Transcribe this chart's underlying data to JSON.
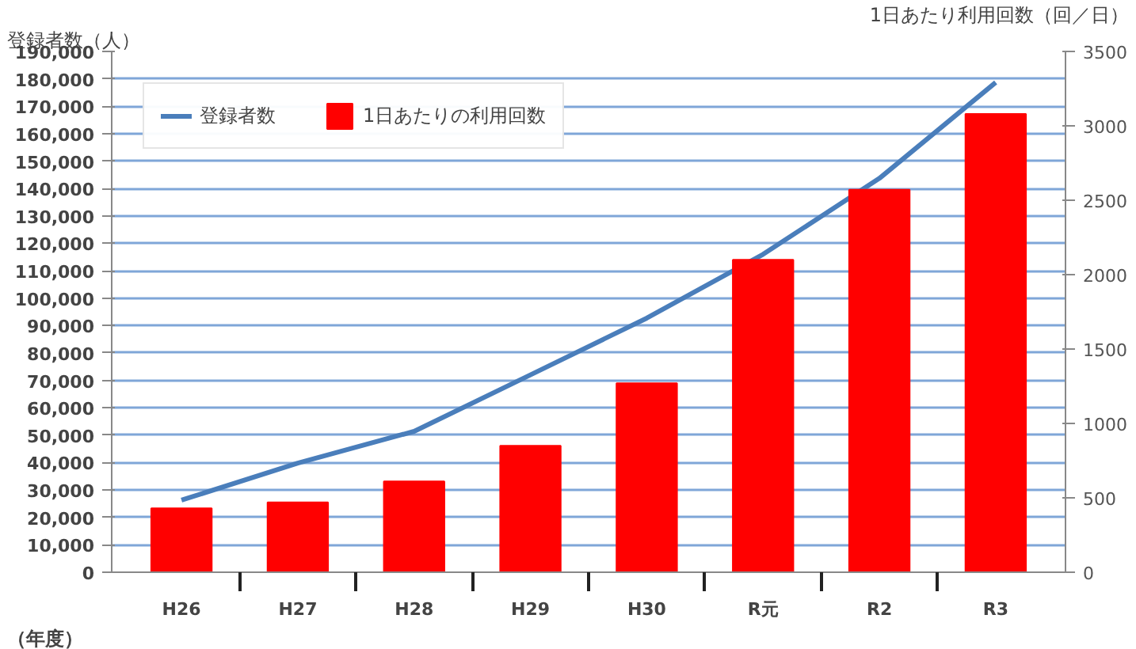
{
  "chart_data": {
    "type": "bar",
    "categories": [
      "H26",
      "H27",
      "H28",
      "H29",
      "H30",
      "R元",
      "R2",
      "R3"
    ],
    "series": [
      {
        "name": "登録者数",
        "type": "line",
        "color": "#4a7ebb",
        "values": [
          26300,
          39800,
          51400,
          72000,
          92700,
          116000,
          143700,
          178700
        ]
      },
      {
        "name": "1日あたりの利用回数",
        "axis": "y2",
        "color": "#ff0000",
        "values": [
          430,
          470,
          610,
          850,
          1270,
          2100,
          2570,
          3080
        ]
      }
    ],
    "xlabel": "（年度）",
    "ylabel": "登録者数（人）",
    "y2label": "1日あたり利用回数（回／日）",
    "ylim": [
      0,
      190000
    ],
    "yticks": [
      {
        "value": 0,
        "label": "0"
      },
      {
        "value": 10000,
        "label": "10,000"
      },
      {
        "value": 20000,
        "label": "20,000"
      },
      {
        "value": 30000,
        "label": "30,000"
      },
      {
        "value": 40000,
        "label": "40,000"
      },
      {
        "value": 50000,
        "label": "50,000"
      },
      {
        "value": 60000,
        "label": "60,000"
      },
      {
        "value": 70000,
        "label": "70,000"
      },
      {
        "value": 80000,
        "label": "80,000"
      },
      {
        "value": 90000,
        "label": "90,000"
      },
      {
        "value": 100000,
        "label": "100,000"
      },
      {
        "value": 110000,
        "label": "110,000"
      },
      {
        "value": 120000,
        "label": "120,000"
      },
      {
        "value": 130000,
        "label": "130,000"
      },
      {
        "value": 140000,
        "label": "140,000"
      },
      {
        "value": 150000,
        "label": "150,000"
      },
      {
        "value": 160000,
        "label": "160,000"
      },
      {
        "value": 170000,
        "label": "170,000"
      },
      {
        "value": 180000,
        "label": "180,000"
      },
      {
        "value": 190000,
        "label": "190,000"
      }
    ],
    "y2lim": [
      0,
      3500
    ],
    "y2ticks": [
      0,
      500,
      1000,
      1500,
      2000,
      2500,
      3000,
      3500
    ],
    "grid": "y",
    "legend": "top left"
  }
}
